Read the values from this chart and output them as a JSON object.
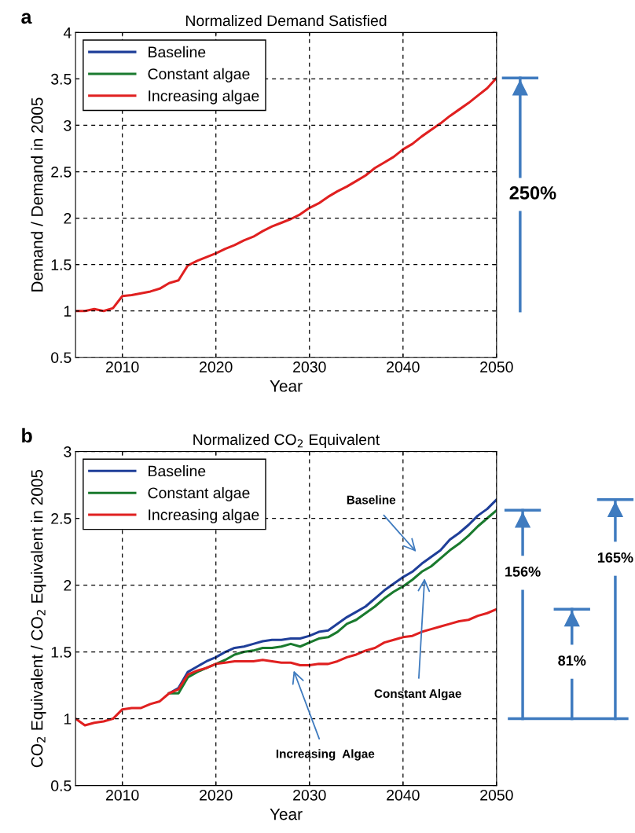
{
  "chart_data": [
    {
      "type": "line",
      "title": "Normalized Demand Satisfied",
      "xlabel": "Year",
      "ylabel": "Demand / Demand in 2005",
      "x": [
        2005,
        2006,
        2007,
        2008,
        2009,
        2010,
        2011,
        2012,
        2013,
        2014,
        2015,
        2016,
        2017,
        2018,
        2019,
        2020,
        2021,
        2022,
        2023,
        2024,
        2025,
        2026,
        2027,
        2028,
        2029,
        2030,
        2031,
        2032,
        2033,
        2034,
        2035,
        2036,
        2037,
        2038,
        2039,
        2040,
        2041,
        2042,
        2043,
        2044,
        2045,
        2046,
        2047,
        2048,
        2049,
        2050
      ],
      "series": [
        {
          "name": "Baseline",
          "color": "#1f3f99",
          "values": [
            null,
            null,
            null,
            null,
            null,
            null,
            null,
            null,
            null,
            null,
            null,
            null,
            null,
            null,
            null,
            null,
            null,
            null,
            null,
            null,
            null,
            null,
            null,
            null,
            null,
            null,
            null,
            null,
            null,
            null,
            null,
            null,
            null,
            null,
            null,
            null,
            null,
            null,
            null,
            null,
            null,
            null,
            null,
            null,
            null,
            null
          ]
        },
        {
          "name": "Constant algae",
          "color": "#1a7a2e",
          "values": [
            null,
            null,
            null,
            null,
            null,
            null,
            null,
            null,
            null,
            null,
            null,
            null,
            null,
            null,
            null,
            null,
            null,
            null,
            null,
            null,
            null,
            null,
            null,
            null,
            null,
            null,
            null,
            null,
            null,
            null,
            null,
            null,
            null,
            null,
            null,
            null,
            null,
            null,
            null,
            null,
            null,
            null,
            null,
            null,
            null,
            null
          ]
        },
        {
          "name": "Increasing algae",
          "color": "#e02020",
          "values": [
            1.0,
            1.0,
            1.02,
            1.0,
            1.03,
            1.16,
            1.17,
            1.19,
            1.21,
            1.24,
            1.3,
            1.33,
            1.49,
            1.54,
            1.58,
            1.62,
            1.67,
            1.71,
            1.76,
            1.8,
            1.86,
            1.91,
            1.95,
            1.99,
            2.04,
            2.11,
            2.16,
            2.23,
            2.29,
            2.34,
            2.4,
            2.46,
            2.54,
            2.6,
            2.66,
            2.74,
            2.8,
            2.88,
            2.95,
            3.02,
            3.1,
            3.17,
            3.24,
            3.32,
            3.4,
            3.51
          ]
        }
      ],
      "xlim": [
        2005,
        2050
      ],
      "xticks": [
        2010,
        2020,
        2030,
        2040,
        2050
      ],
      "ylim": [
        0.5,
        4
      ],
      "yticks": [
        0.5,
        1,
        1.5,
        2,
        2.5,
        3,
        3.5,
        4
      ],
      "grid": true,
      "legend": "top left",
      "line_style": "solid",
      "annotations": [
        "a",
        "250%"
      ]
    },
    {
      "type": "line",
      "title": "Normalized CO$_{2}$ Equivalent",
      "xlabel": "Year",
      "ylabel": "CO$_{2}$ Equivalent / CO$_{2}$ Equivalent in 2005",
      "x": [
        2005,
        2006,
        2007,
        2008,
        2009,
        2010,
        2011,
        2012,
        2013,
        2014,
        2015,
        2016,
        2017,
        2018,
        2019,
        2020,
        2021,
        2022,
        2023,
        2024,
        2025,
        2026,
        2027,
        2028,
        2029,
        2030,
        2031,
        2032,
        2033,
        2034,
        2035,
        2036,
        2037,
        2038,
        2039,
        2040,
        2041,
        2042,
        2043,
        2044,
        2045,
        2046,
        2047,
        2048,
        2049,
        2050
      ],
      "series": [
        {
          "name": "Baseline",
          "color": "#1f3f99",
          "values": [
            null,
            null,
            null,
            null,
            null,
            null,
            null,
            null,
            null,
            null,
            1.19,
            1.23,
            1.35,
            1.39,
            1.43,
            1.46,
            1.5,
            1.53,
            1.54,
            1.56,
            1.58,
            1.59,
            1.59,
            1.6,
            1.6,
            1.62,
            1.65,
            1.66,
            1.71,
            1.76,
            1.8,
            1.84,
            1.9,
            1.96,
            2.01,
            2.06,
            2.1,
            2.16,
            2.21,
            2.26,
            2.34,
            2.39,
            2.45,
            2.52,
            2.57,
            2.64
          ]
        },
        {
          "name": "Constant algae",
          "color": "#1a7a2e",
          "values": [
            null,
            null,
            null,
            null,
            null,
            null,
            null,
            null,
            null,
            null,
            1.19,
            1.19,
            1.31,
            1.35,
            1.38,
            1.41,
            1.44,
            1.48,
            1.5,
            1.51,
            1.53,
            1.53,
            1.54,
            1.56,
            1.54,
            1.57,
            1.6,
            1.61,
            1.65,
            1.71,
            1.74,
            1.79,
            1.84,
            1.9,
            1.95,
            1.99,
            2.04,
            2.1,
            2.14,
            2.2,
            2.26,
            2.31,
            2.37,
            2.44,
            2.5,
            2.56
          ]
        },
        {
          "name": "Increasing algae",
          "color": "#e02020",
          "values": [
            1.0,
            0.95,
            0.97,
            0.98,
            1.0,
            1.07,
            1.08,
            1.08,
            1.11,
            1.13,
            1.19,
            1.22,
            1.33,
            1.36,
            1.38,
            1.41,
            1.42,
            1.43,
            1.43,
            1.43,
            1.44,
            1.43,
            1.42,
            1.42,
            1.4,
            1.4,
            1.41,
            1.41,
            1.43,
            1.46,
            1.48,
            1.51,
            1.53,
            1.57,
            1.59,
            1.61,
            1.62,
            1.65,
            1.67,
            1.69,
            1.71,
            1.73,
            1.74,
            1.77,
            1.79,
            1.82
          ]
        }
      ],
      "xlim": [
        2005,
        2050
      ],
      "xticks": [
        2010,
        2020,
        2030,
        2040,
        2050
      ],
      "ylim": [
        0.5,
        3
      ],
      "yticks": [
        0.5,
        1,
        1.5,
        2,
        2.5,
        3
      ],
      "grid": true,
      "legend": "top left",
      "line_style": "solid",
      "annotations": [
        "b",
        "Baseline",
        "Constant Algae",
        "Increasing  Algae",
        "156%",
        "81%",
        "165%"
      ]
    }
  ]
}
